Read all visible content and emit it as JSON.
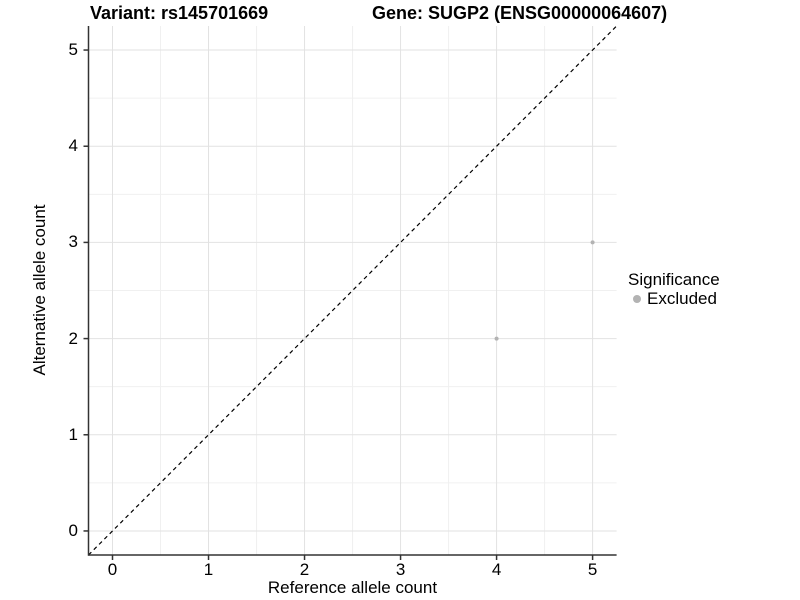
{
  "titles": {
    "left": "Variant: rs145701669",
    "right": "Gene: SUGP2 (ENSG00000064607)"
  },
  "chart_data": {
    "type": "scatter",
    "xlabel": "Reference allele count",
    "ylabel": "Alternative allele count",
    "xlim": [
      -0.25,
      5.25
    ],
    "ylim": [
      -0.25,
      5.25
    ],
    "x_ticks": [
      0,
      1,
      2,
      3,
      4,
      5
    ],
    "y_ticks": [
      0,
      1,
      2,
      3,
      4,
      5
    ],
    "grid": "major and minor gridlines, light gray, white background",
    "reference_line": {
      "type": "identity y = x",
      "style": "dashed",
      "color": "#000000"
    },
    "series": [
      {
        "name": "Excluded",
        "color": "#b3b3b3",
        "points": [
          {
            "x": 4,
            "y": 2
          },
          {
            "x": 5,
            "y": 3
          }
        ]
      }
    ],
    "legend": {
      "title": "Significance",
      "position": "right-center",
      "items": [
        {
          "label": "Excluded",
          "color": "#b3b3b3"
        }
      ]
    }
  },
  "colors": {
    "background": "#ffffff",
    "grid_major": "#e2e2e2",
    "grid_minor": "#f0f0f0",
    "axis_line": "#333333",
    "point": "#b3b3b3",
    "text": "#000000"
  }
}
